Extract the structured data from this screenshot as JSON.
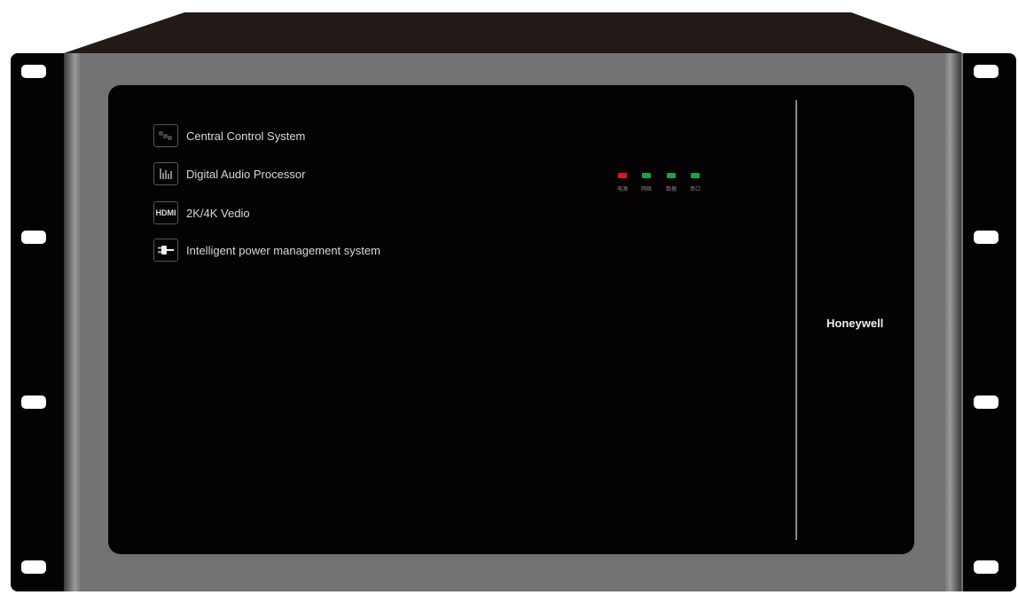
{
  "features": [
    {
      "icon": "nodes-icon",
      "label": "Central Control System"
    },
    {
      "icon": "audio-bars-icon",
      "label": "Digital Audio Processor",
      "glyph": "|ılıl"
    },
    {
      "icon": "hdmi-icon",
      "label": "2K/4K Vedio",
      "glyph": "HDMI"
    },
    {
      "icon": "power-plug-icon",
      "label": "Intelligent power management system"
    }
  ],
  "indicators": [
    {
      "label": "电源",
      "color": "#e0141b"
    },
    {
      "label": "网络",
      "color": "#1aa34a"
    },
    {
      "label": "数据",
      "color": "#1aa34a"
    },
    {
      "label": "串口",
      "color": "#1aa34a"
    }
  ],
  "brand": "Honeywell"
}
